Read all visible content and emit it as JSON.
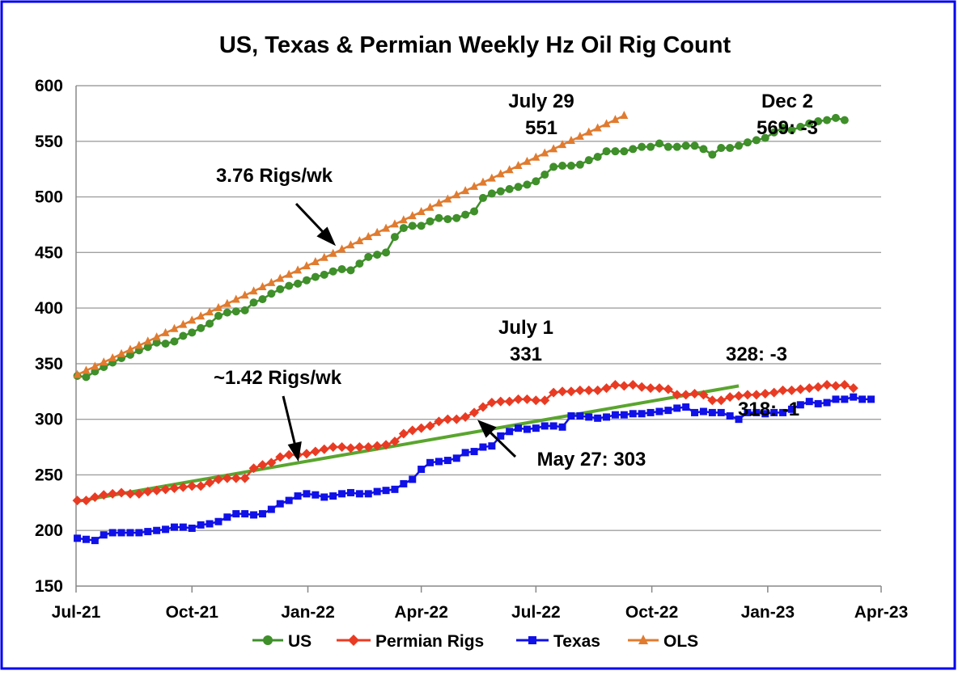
{
  "chart_data": {
    "type": "line",
    "title": "US, Texas & Permian Weekly Hz Oil Rig Count",
    "xlabel": "",
    "ylabel": "",
    "ylim": [
      150,
      600
    ],
    "yticks": [
      150,
      200,
      250,
      300,
      350,
      400,
      450,
      500,
      550,
      600
    ],
    "xlim": [
      "2021-07-01",
      "2023-04-01"
    ],
    "xticks": [
      {
        "date": "2021-07-01",
        "label": "Jul-21"
      },
      {
        "date": "2021-10-01",
        "label": "Oct-21"
      },
      {
        "date": "2022-01-01",
        "label": "Jan-22"
      },
      {
        "date": "2022-04-01",
        "label": "Apr-22"
      },
      {
        "date": "2022-07-01",
        "label": "Jul-22"
      },
      {
        "date": "2022-10-01",
        "label": "Oct-22"
      },
      {
        "date": "2023-01-01",
        "label": "Jan-23"
      },
      {
        "date": "2023-04-01",
        "label": "Apr-23"
      }
    ],
    "grid": true,
    "legend_position": "bottom",
    "colors": {
      "frame": "#0000ee",
      "us": "#3f8f2a",
      "permian": "#e93b23",
      "texas": "#1010e8",
      "ols": "#e07b2f",
      "trend": "#5aa52e",
      "grid": "#a0a0a0"
    },
    "series": [
      {
        "name": "US",
        "marker": "circle",
        "start": "2021-07-02",
        "values": [
          339,
          338,
          343,
          347,
          351,
          355,
          358,
          362,
          365,
          369,
          368,
          370,
          375,
          378,
          382,
          386,
          393,
          396,
          397,
          398,
          405,
          408,
          413,
          417,
          420,
          422,
          425,
          428,
          430,
          433,
          435,
          434,
          440,
          446,
          448,
          450,
          464,
          472,
          474,
          474,
          478,
          481,
          480,
          481,
          484,
          487,
          499,
          503,
          505,
          507,
          509,
          511,
          514,
          520,
          527,
          528,
          528,
          529,
          533,
          536,
          541,
          541,
          541,
          543,
          545,
          545,
          548,
          545,
          545,
          546,
          546,
          543,
          538,
          544,
          544,
          546,
          549,
          551,
          553,
          558,
          562,
          560,
          563,
          566,
          568,
          569,
          571,
          569
        ]
      },
      {
        "name": "Permian Rigs",
        "marker": "diamond",
        "start": "2021-07-02",
        "values": [
          227,
          227,
          230,
          232,
          233,
          234,
          233,
          233,
          235,
          236,
          237,
          238,
          239,
          240,
          240,
          243,
          246,
          247,
          247,
          247,
          256,
          259,
          261,
          266,
          268,
          268,
          269,
          271,
          273,
          275,
          275,
          274,
          275,
          275,
          276,
          277,
          280,
          287,
          290,
          292,
          294,
          298,
          300,
          300,
          302,
          306,
          311,
          315,
          316,
          316,
          318,
          318,
          317,
          317,
          324,
          325,
          325,
          326,
          326,
          326,
          328,
          331,
          330,
          331,
          329,
          328,
          328,
          327,
          322,
          322,
          323,
          322,
          317,
          317,
          320,
          321,
          322,
          322,
          323,
          324,
          326,
          326,
          327,
          328,
          329,
          331,
          330,
          331,
          328
        ]
      },
      {
        "name": "Texas",
        "marker": "square",
        "start": "2021-07-02",
        "values": [
          193,
          192,
          191,
          196,
          198,
          198,
          198,
          198,
          199,
          200,
          201,
          203,
          203,
          202,
          205,
          206,
          208,
          212,
          215,
          215,
          214,
          215,
          219,
          224,
          227,
          231,
          233,
          232,
          230,
          231,
          233,
          234,
          233,
          233,
          235,
          236,
          237,
          242,
          246,
          255,
          261,
          262,
          263,
          265,
          270,
          271,
          275,
          276,
          285,
          289,
          292,
          291,
          292,
          294,
          294,
          293,
          303,
          303,
          302,
          301,
          302,
          304,
          304,
          305,
          305,
          306,
          307,
          308,
          310,
          311,
          306,
          307,
          306,
          306,
          303,
          300,
          306,
          306,
          305,
          306,
          306,
          309,
          313,
          316,
          314,
          315,
          318,
          318,
          320,
          318,
          318
        ]
      },
      {
        "name": "OLS",
        "marker": "triangle",
        "start": "2021-07-02",
        "values": [
          340.0,
          343.8,
          347.5,
          351.3,
          355.0,
          358.8,
          362.6,
          366.3,
          370.1,
          373.8,
          377.6,
          381.4,
          385.1,
          388.9,
          392.6,
          396.4,
          400.2,
          403.9,
          407.7,
          411.4,
          415.2,
          419.0,
          422.7,
          426.5,
          430.2,
          434.0,
          437.8,
          441.5,
          445.3,
          449.0,
          452.8,
          456.6,
          460.3,
          464.1,
          467.8,
          471.6,
          475.4,
          479.1,
          482.9,
          486.6,
          490.4,
          494.2,
          497.9,
          501.7,
          505.4,
          509.2,
          513.0,
          516.7,
          520.5,
          524.2,
          528.0,
          531.8,
          535.5,
          539.3,
          543.0,
          546.8,
          550.6,
          554.3,
          558.1,
          561.8,
          565.6,
          569.4,
          573.1
        ]
      },
      {
        "name": "",
        "marker": "none",
        "start": "2021-07-01",
        "end": "2022-12-09",
        "values": [
          226,
          330
        ]
      }
    ],
    "annotations": [
      {
        "text": "July 29",
        "value": "551"
      },
      {
        "text": "Dec 2",
        "value": "569: -3"
      },
      {
        "text": "3.76 Rigs/wk"
      },
      {
        "text": "July 1",
        "value": "331"
      },
      {
        "text": "328: -3"
      },
      {
        "text": "~1.42 Rigs/wk"
      },
      {
        "text": "318: -1"
      },
      {
        "text": "May 27: 303"
      }
    ]
  }
}
